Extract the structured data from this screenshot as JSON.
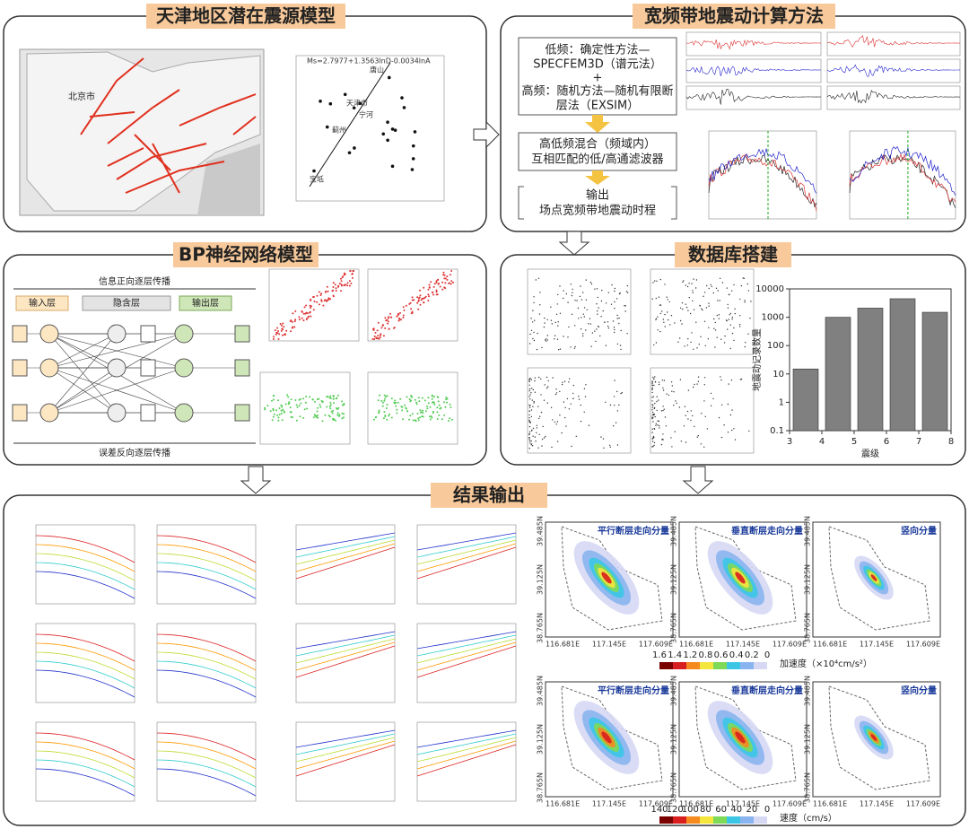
{
  "source_model": {
    "title": "天津地区潜在震源模型",
    "map_label": "北京市",
    "equation": "Ms=2.7977+1.3563lnD-0.0034lnA",
    "points": [
      "唐山",
      "天津市",
      "宁河",
      "蓟州",
      "宝坻"
    ]
  },
  "broadband": {
    "title": "宽频带地震动计算方法",
    "low_1": "低频：确定性方法—",
    "low_2": "SPECFEM3D（谱元法）",
    "plus": "+",
    "high_1": "高频：随机方法—随机有限断",
    "high_2": "层法（EXSIM）",
    "hybrid_1": "高低频混合（频域内）",
    "hybrid_2": "互相匹配的低/高通滤波器",
    "output_1": "输出",
    "output_2": "场点宽频带地震动时程"
  },
  "bp": {
    "title": "BP神经网络模型",
    "forward": "信息正向逐层传播",
    "input": "输入层",
    "hidden": "隐含层",
    "output": "输出层",
    "backward": "误差反向逐层传播"
  },
  "database": {
    "title": "数据库搭建",
    "chart": {
      "type": "histogram",
      "bins": [
        3,
        4,
        5,
        6,
        7,
        8
      ],
      "values": [
        15,
        1000,
        2100,
        4500,
        1500
      ],
      "color": "#808080",
      "ylim": [
        0.1,
        10000
      ],
      "yticks": [
        0.1,
        1,
        10,
        100,
        1000,
        10000
      ],
      "xticks": [
        3,
        4,
        5,
        6,
        7,
        8
      ],
      "xlim": [
        3,
        8
      ],
      "log_y": true,
      "xlabel": "震级",
      "ylabel": "地震动记录数量"
    }
  },
  "results": {
    "title": "结果输出",
    "components": [
      "平行断层走向分量",
      "垂直断层走向分量",
      "竖向分量"
    ],
    "lon": [
      "116.681E",
      "117.145E",
      "117.609E"
    ],
    "lat": [
      "39.485N",
      "39.125N",
      "38.765N"
    ],
    "acc_bar": {
      "ticks": [
        1.6,
        1.4,
        1.2,
        0.8,
        0.6,
        0.4,
        0.2,
        0
      ],
      "label": "加速度（×10⁴cm/s²）",
      "colors": [
        "#7a0000",
        "#d81e1e",
        "#f58a1f",
        "#f5e63c",
        "#7ed957",
        "#3cc6e6",
        "#8ab4f0",
        "#d6d8f4"
      ]
    },
    "vel_bar": {
      "ticks": [
        140,
        120,
        100,
        80,
        60,
        40,
        20,
        0
      ],
      "label": "速度（cm/s）",
      "colors": [
        "#7a0000",
        "#d81e1e",
        "#f58a1f",
        "#f5e63c",
        "#7ed957",
        "#3cc6e6",
        "#8ab4f0",
        "#d6d8f4"
      ]
    }
  }
}
